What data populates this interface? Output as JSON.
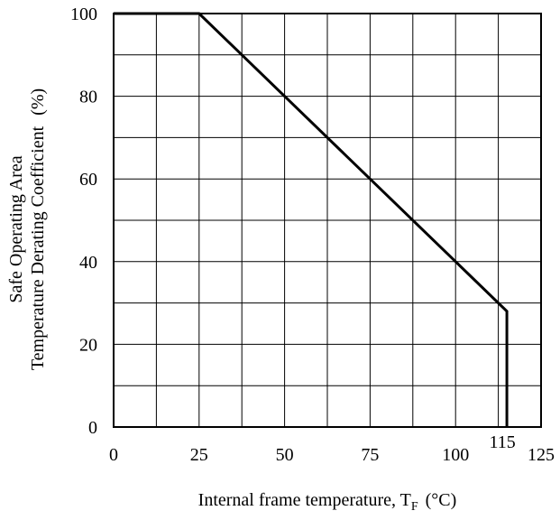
{
  "chart_data": {
    "type": "line",
    "title": "",
    "xlabel_main": "Internal frame temperature, T",
    "xlabel_sub": "F",
    "xlabel_unit": "(°C)",
    "ylabel_line1": "Safe Operating Area",
    "ylabel_line2": "Temperature Derating Coefficient",
    "ylabel_unit": "(%)",
    "xlim": [
      0,
      125
    ],
    "ylim": [
      0,
      100
    ],
    "x_ticks": [
      {
        "value": 0,
        "label": "0"
      },
      {
        "value": 25,
        "label": "25"
      },
      {
        "value": 50,
        "label": "50"
      },
      {
        "value": 75,
        "label": "75"
      },
      {
        "value": 100,
        "label": "100"
      },
      {
        "value": 125,
        "label": "125"
      }
    ],
    "x_extra_tick": {
      "value": 115,
      "label": "115"
    },
    "y_ticks": [
      {
        "value": 0,
        "label": "0"
      },
      {
        "value": 20,
        "label": "20"
      },
      {
        "value": 40,
        "label": "40"
      },
      {
        "value": 60,
        "label": "60"
      },
      {
        "value": 80,
        "label": "80"
      },
      {
        "value": 100,
        "label": "100"
      }
    ],
    "grid": true,
    "x_grid_step": 12.5,
    "y_grid_step": 10,
    "series": [
      {
        "x": [
          0,
          25,
          115,
          115
        ],
        "y": [
          100,
          100,
          28,
          0
        ]
      }
    ]
  }
}
